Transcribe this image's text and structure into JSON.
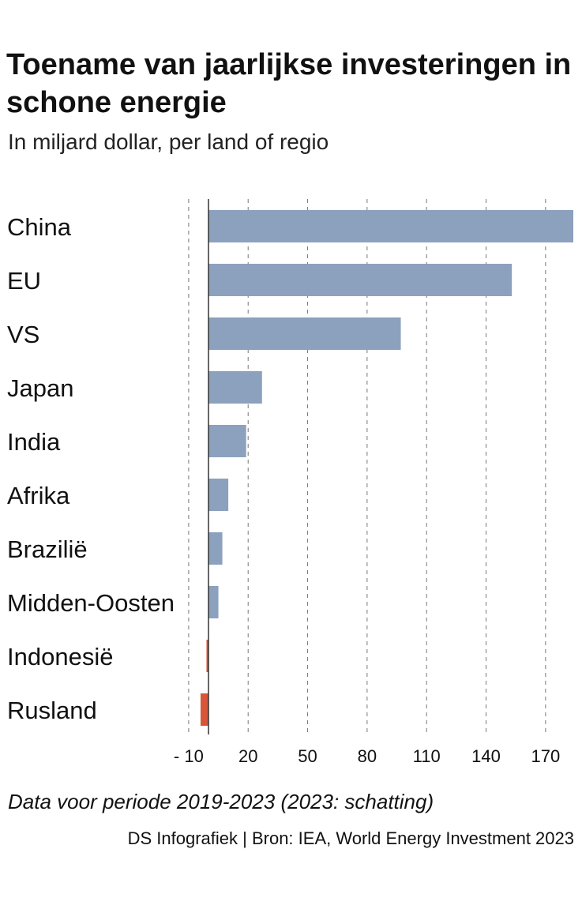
{
  "title": "Toename van jaarlijkse investeringen in schone energie",
  "subtitle": "In miljard dollar, per land of regio",
  "note": "Data voor periode 2019-2023 (2023: schatting)",
  "source": "DS Infografiek | Bron: IEA, World Energy Investment 2023",
  "colors": {
    "positive": "#8ca1bd",
    "negative": "#d9553a",
    "grid": "#777777",
    "axis": "#333333"
  },
  "chart_data": {
    "type": "bar",
    "orientation": "horizontal",
    "title": "Toename van jaarlijkse investeringen in schone energie",
    "subtitle": "In miljard dollar, per land of regio",
    "categories": [
      "China",
      "EU",
      "VS",
      "Japan",
      "India",
      "Afrika",
      "Braziliё",
      "Midden-Oosten",
      "Indonesiё",
      "Rusland"
    ],
    "values": [
      184,
      153,
      97,
      27,
      19,
      10,
      7,
      5,
      -1,
      -4
    ],
    "xlim": [
      -10,
      184
    ],
    "ticks": [
      -10,
      20,
      50,
      80,
      110,
      140,
      170
    ],
    "tick_labels": [
      "- 10",
      "20",
      "50",
      "80",
      "110",
      "140",
      "170"
    ],
    "grid": true,
    "grid_style": "dashed"
  }
}
